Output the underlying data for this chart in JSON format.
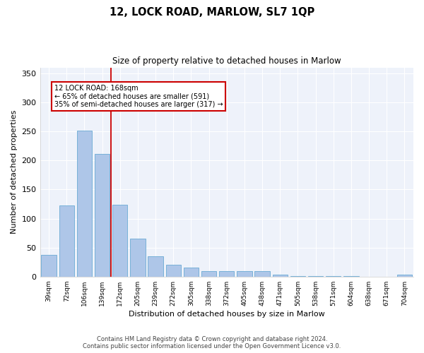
{
  "title1": "12, LOCK ROAD, MARLOW, SL7 1QP",
  "title2": "Size of property relative to detached houses in Marlow",
  "xlabel": "Distribution of detached houses by size in Marlow",
  "ylabel": "Number of detached properties",
  "bar_color": "#aec6e8",
  "bar_edge_color": "#6aaad4",
  "background_color": "#eef2fa",
  "grid_color": "#ffffff",
  "categories": [
    "39sqm",
    "72sqm",
    "106sqm",
    "139sqm",
    "172sqm",
    "205sqm",
    "239sqm",
    "272sqm",
    "305sqm",
    "338sqm",
    "372sqm",
    "405sqm",
    "438sqm",
    "471sqm",
    "505sqm",
    "538sqm",
    "571sqm",
    "604sqm",
    "638sqm",
    "671sqm",
    "704sqm"
  ],
  "values": [
    37,
    123,
    251,
    211,
    124,
    65,
    35,
    20,
    15,
    10,
    10,
    10,
    9,
    4,
    1,
    1,
    1,
    1,
    0,
    0,
    3
  ],
  "ylim": [
    0,
    360
  ],
  "yticks": [
    0,
    50,
    100,
    150,
    200,
    250,
    300,
    350
  ],
  "vline_color": "#cc0000",
  "annotation_label": "12 LOCK ROAD: 168sqm",
  "annotation_line1": "← 65% of detached houses are smaller (591)",
  "annotation_line2": "35% of semi-detached houses are larger (317) →",
  "footer1": "Contains HM Land Registry data © Crown copyright and database right 2024.",
  "footer2": "Contains public sector information licensed under the Open Government Licence v3.0."
}
